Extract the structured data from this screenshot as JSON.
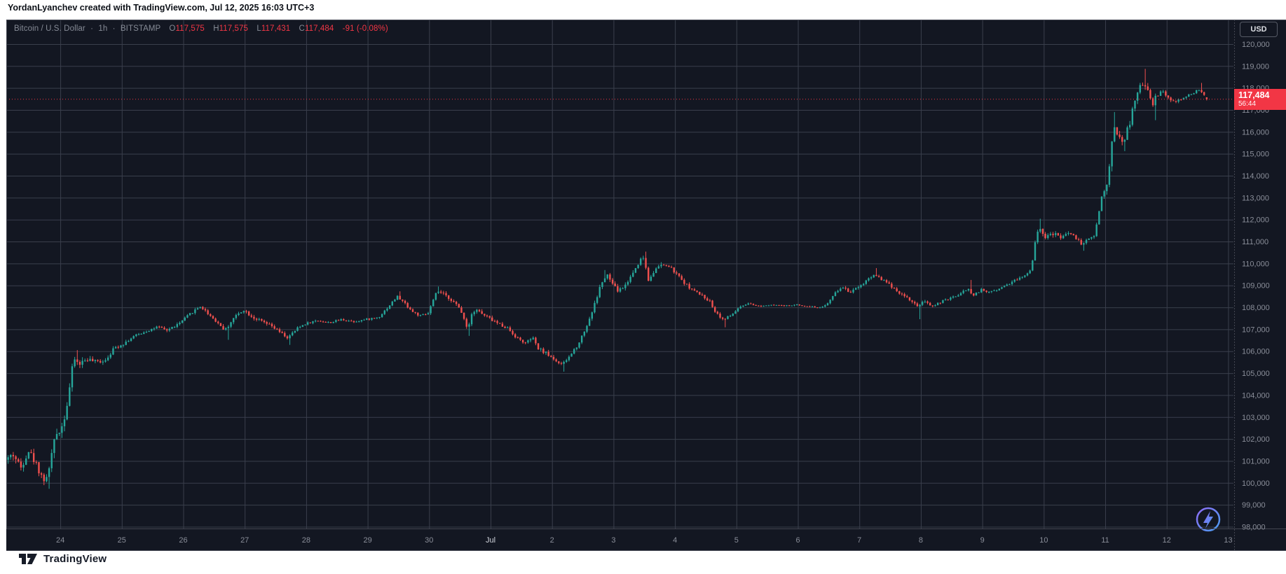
{
  "attribution": "YordanLyanchev created with TradingView.com, Jul 12, 2025 16:03 UTC+3",
  "footer": {
    "brand": "TradingView"
  },
  "symbol_bar": {
    "title": "Bitcoin / U.S. Dollar",
    "separator": "·",
    "interval": "1h",
    "exchange": "BITSTAMP",
    "o_label": "O",
    "o_value": "117,575",
    "h_label": "H",
    "h_value": "117,575",
    "l_label": "L",
    "l_value": "117,431",
    "c_label": "C",
    "c_value": "117,484",
    "change": "-91 (-0.08%)"
  },
  "price_axis": {
    "currency_button": "USD",
    "last_price_label": "117,484",
    "countdown": "56:44",
    "labels": [
      {
        "text": "120,000",
        "value": 120000
      },
      {
        "text": "119,000",
        "value": 119000
      },
      {
        "text": "118,000",
        "value": 118000
      },
      {
        "text": "117,000",
        "value": 117000
      },
      {
        "text": "116,000",
        "value": 116000
      },
      {
        "text": "115,000",
        "value": 115000
      },
      {
        "text": "114,000",
        "value": 114000
      },
      {
        "text": "113,000",
        "value": 113000
      },
      {
        "text": "112,000",
        "value": 112000
      },
      {
        "text": "111,000",
        "value": 111000
      },
      {
        "text": "110,000",
        "value": 110000
      },
      {
        "text": "109,000",
        "value": 109000
      },
      {
        "text": "108,000",
        "value": 108000
      },
      {
        "text": "107,000",
        "value": 107000
      },
      {
        "text": "106,000",
        "value": 106000
      },
      {
        "text": "105,000",
        "value": 105000
      },
      {
        "text": "104,000",
        "value": 104000
      },
      {
        "text": "103,000",
        "value": 103000
      },
      {
        "text": "102,000",
        "value": 102000
      },
      {
        "text": "101,000",
        "value": 101000
      },
      {
        "text": "100,000",
        "value": 100000
      },
      {
        "text": "99,000",
        "value": 99000
      },
      {
        "text": "98,000",
        "value": 98000
      }
    ]
  },
  "time_axis": {
    "labels": [
      {
        "text": "24",
        "day": -7
      },
      {
        "text": "25",
        "day": -6
      },
      {
        "text": "26",
        "day": -5
      },
      {
        "text": "27",
        "day": -4
      },
      {
        "text": "28",
        "day": -3
      },
      {
        "text": "29",
        "day": -2
      },
      {
        "text": "30",
        "day": -1
      },
      {
        "text": "Jul",
        "day": 0,
        "major": true
      },
      {
        "text": "2",
        "day": 1
      },
      {
        "text": "3",
        "day": 2
      },
      {
        "text": "4",
        "day": 3
      },
      {
        "text": "5",
        "day": 4
      },
      {
        "text": "6",
        "day": 5
      },
      {
        "text": "7",
        "day": 6
      },
      {
        "text": "8",
        "day": 7
      },
      {
        "text": "9",
        "day": 8
      },
      {
        "text": "10",
        "day": 9
      },
      {
        "text": "11",
        "day": 10
      },
      {
        "text": "12",
        "day": 11
      },
      {
        "text": "13",
        "day": 12
      }
    ]
  },
  "colors": {
    "background": "#131722",
    "grid": "#3a3f4c",
    "border": "#434651",
    "axis_text": "#8a8e99",
    "axis_text_major": "#d1d4dc",
    "up": "#26a69a",
    "down": "#f0504e",
    "price_line": "#f23645",
    "badge_bg": "#f23645",
    "watermark_purple": "#8d6bf5",
    "watermark_blue": "#4a9df0"
  },
  "chart_data": {
    "type": "candlestick",
    "symbol": "BTCUSD",
    "title": "Bitcoin / U.S. Dollar",
    "exchange": "BITSTAMP",
    "interval": "1h",
    "x_axis": "date (Jun 23 - Jul 13, 2025; day 0 = Jul 1)",
    "y_axis": "price (USD)",
    "x_domain": [
      -7.879,
      12.086
    ],
    "y_domain": [
      97920,
      121115
    ],
    "grid_step_price": 1000,
    "grid_step_days": 1,
    "start_day": -7.87,
    "candle_count": 469,
    "hours_per_candle": 1,
    "last_candle": {
      "open": 117575,
      "high": 117575,
      "low": 117431,
      "close": 117484,
      "change": -91,
      "change_pct": -0.08
    },
    "last_price": 117484,
    "price_path": [
      [
        -7.87,
        101050
      ],
      [
        -7.75,
        101300
      ],
      [
        -7.62,
        100700
      ],
      [
        -7.5,
        101500
      ],
      [
        -7.38,
        100900
      ],
      [
        -7.28,
        100300
      ],
      [
        -7.21,
        100050
      ],
      [
        -7.14,
        101050
      ],
      [
        -7.05,
        102200
      ],
      [
        -6.95,
        102600
      ],
      [
        -6.88,
        103400
      ],
      [
        -6.82,
        104500
      ],
      [
        -6.76,
        105700
      ],
      [
        -6.68,
        105400
      ],
      [
        -6.55,
        105650
      ],
      [
        -6.4,
        105500
      ],
      [
        -6.25,
        105600
      ],
      [
        -6.1,
        106150
      ],
      [
        -5.95,
        106350
      ],
      [
        -5.8,
        106650
      ],
      [
        -5.6,
        106900
      ],
      [
        -5.4,
        107100
      ],
      [
        -5.25,
        106950
      ],
      [
        -5.05,
        107250
      ],
      [
        -4.85,
        107750
      ],
      [
        -4.7,
        108050
      ],
      [
        -4.55,
        107650
      ],
      [
        -4.42,
        107300
      ],
      [
        -4.3,
        106950
      ],
      [
        -4.15,
        107550
      ],
      [
        -4.0,
        107900
      ],
      [
        -3.85,
        107550
      ],
      [
        -3.7,
        107350
      ],
      [
        -3.55,
        107150
      ],
      [
        -3.4,
        106850
      ],
      [
        -3.28,
        106600
      ],
      [
        -3.12,
        107050
      ],
      [
        -3.0,
        107250
      ],
      [
        -2.8,
        107400
      ],
      [
        -2.6,
        107300
      ],
      [
        -2.4,
        107450
      ],
      [
        -2.2,
        107350
      ],
      [
        -2.0,
        107450
      ],
      [
        -1.8,
        107550
      ],
      [
        -1.62,
        108100
      ],
      [
        -1.5,
        108500
      ],
      [
        -1.38,
        108200
      ],
      [
        -1.25,
        107800
      ],
      [
        -1.12,
        107600
      ],
      [
        -1.0,
        107700
      ],
      [
        -0.92,
        108250
      ],
      [
        -0.85,
        108750
      ],
      [
        -0.75,
        108600
      ],
      [
        -0.62,
        108350
      ],
      [
        -0.5,
        108000
      ],
      [
        -0.42,
        107600
      ],
      [
        -0.35,
        106950
      ],
      [
        -0.29,
        107750
      ],
      [
        -0.2,
        107900
      ],
      [
        -0.1,
        107650
      ],
      [
        0.0,
        107500
      ],
      [
        0.15,
        107250
      ],
      [
        0.3,
        107050
      ],
      [
        0.45,
        106600
      ],
      [
        0.6,
        106350
      ],
      [
        0.7,
        106650
      ],
      [
        0.78,
        106150
      ],
      [
        0.9,
        105950
      ],
      [
        1.05,
        105650
      ],
      [
        1.18,
        105350
      ],
      [
        1.3,
        105750
      ],
      [
        1.45,
        106350
      ],
      [
        1.6,
        107250
      ],
      [
        1.72,
        108200
      ],
      [
        1.82,
        109100
      ],
      [
        1.92,
        109450
      ],
      [
        2.0,
        109100
      ],
      [
        2.08,
        108750
      ],
      [
        2.2,
        108950
      ],
      [
        2.32,
        109500
      ],
      [
        2.45,
        110150
      ],
      [
        2.52,
        110300
      ],
      [
        2.58,
        109200
      ],
      [
        2.65,
        109550
      ],
      [
        2.75,
        109850
      ],
      [
        2.85,
        109950
      ],
      [
        2.95,
        109800
      ],
      [
        3.05,
        109500
      ],
      [
        3.18,
        109100
      ],
      [
        3.3,
        108800
      ],
      [
        3.45,
        108550
      ],
      [
        3.58,
        108300
      ],
      [
        3.68,
        107800
      ],
      [
        3.8,
        107450
      ],
      [
        3.92,
        107600
      ],
      [
        4.05,
        107950
      ],
      [
        4.2,
        108150
      ],
      [
        4.4,
        108050
      ],
      [
        4.6,
        108130
      ],
      [
        4.8,
        108060
      ],
      [
        5.0,
        108110
      ],
      [
        5.2,
        108050
      ],
      [
        5.38,
        107980
      ],
      [
        5.52,
        108200
      ],
      [
        5.65,
        108750
      ],
      [
        5.78,
        108950
      ],
      [
        5.85,
        108650
      ],
      [
        5.95,
        108900
      ],
      [
        6.05,
        109000
      ],
      [
        6.18,
        109350
      ],
      [
        6.28,
        109500
      ],
      [
        6.4,
        109250
      ],
      [
        6.55,
        108950
      ],
      [
        6.7,
        108600
      ],
      [
        6.82,
        108400
      ],
      [
        6.95,
        108050
      ],
      [
        7.08,
        108250
      ],
      [
        7.2,
        108050
      ],
      [
        7.35,
        108250
      ],
      [
        7.5,
        108400
      ],
      [
        7.65,
        108600
      ],
      [
        7.78,
        108850
      ],
      [
        7.88,
        108550
      ],
      [
        8.0,
        108800
      ],
      [
        8.12,
        108700
      ],
      [
        8.25,
        108800
      ],
      [
        8.4,
        109000
      ],
      [
        8.55,
        109250
      ],
      [
        8.7,
        109400
      ],
      [
        8.82,
        109800
      ],
      [
        8.9,
        111400
      ],
      [
        8.97,
        111600
      ],
      [
        9.05,
        111200
      ],
      [
        9.18,
        111350
      ],
      [
        9.3,
        111200
      ],
      [
        9.42,
        111400
      ],
      [
        9.55,
        111150
      ],
      [
        9.65,
        110850
      ],
      [
        9.75,
        111150
      ],
      [
        9.85,
        111250
      ],
      [
        9.93,
        112600
      ],
      [
        10.0,
        113400
      ],
      [
        10.07,
        113700
      ],
      [
        10.13,
        115600
      ],
      [
        10.18,
        116300
      ],
      [
        10.25,
        115700
      ],
      [
        10.32,
        115600
      ],
      [
        10.42,
        116400
      ],
      [
        10.5,
        117400
      ],
      [
        10.58,
        118000
      ],
      [
        10.65,
        118250
      ],
      [
        10.72,
        117900
      ],
      [
        10.78,
        117100
      ],
      [
        10.85,
        117650
      ],
      [
        10.95,
        117850
      ],
      [
        11.05,
        117500
      ],
      [
        11.15,
        117350
      ],
      [
        11.3,
        117550
      ],
      [
        11.45,
        117750
      ],
      [
        11.55,
        117950
      ],
      [
        11.62,
        117700
      ],
      [
        11.66,
        117484
      ]
    ],
    "volatility_path": [
      [
        -7.87,
        420
      ],
      [
        -7.0,
        520
      ],
      [
        -6.6,
        300
      ],
      [
        -6.0,
        180
      ],
      [
        -5.0,
        150
      ],
      [
        -4.4,
        190
      ],
      [
        -3.6,
        180
      ],
      [
        -2.8,
        110
      ],
      [
        -2.0,
        110
      ],
      [
        -1.5,
        150
      ],
      [
        -0.9,
        170
      ],
      [
        -0.3,
        200
      ],
      [
        0.3,
        170
      ],
      [
        0.9,
        190
      ],
      [
        1.5,
        210
      ],
      [
        2.2,
        240
      ],
      [
        2.8,
        170
      ],
      [
        3.5,
        160
      ],
      [
        3.9,
        160
      ],
      [
        4.3,
        70
      ],
      [
        5.3,
        70
      ],
      [
        5.7,
        150
      ],
      [
        6.3,
        170
      ],
      [
        7.0,
        150
      ],
      [
        7.6,
        130
      ],
      [
        8.3,
        130
      ],
      [
        8.8,
        180
      ],
      [
        9.0,
        300
      ],
      [
        9.4,
        160
      ],
      [
        9.8,
        160
      ],
      [
        9.95,
        420
      ],
      [
        10.15,
        480
      ],
      [
        10.45,
        330
      ],
      [
        10.7,
        330
      ],
      [
        10.85,
        220
      ],
      [
        11.2,
        140
      ],
      [
        11.66,
        110
      ]
    ],
    "wick_extremes": [
      [
        -7.22,
        "l",
        99730
      ],
      [
        -6.76,
        "h",
        106050
      ],
      [
        -4.3,
        "l",
        106520
      ],
      [
        -3.3,
        "l",
        106290
      ],
      [
        -1.5,
        "h",
        108730
      ],
      [
        -0.85,
        "h",
        108950
      ],
      [
        -0.35,
        "l",
        106700
      ],
      [
        1.18,
        "l",
        105070
      ],
      [
        1.85,
        "h",
        109700
      ],
      [
        2.5,
        "h",
        110540
      ],
      [
        2.75,
        "h",
        110060
      ],
      [
        3.8,
        "l",
        107090
      ],
      [
        6.27,
        "h",
        109790
      ],
      [
        6.97,
        "l",
        107460
      ],
      [
        7.78,
        "h",
        109250
      ],
      [
        8.92,
        "h",
        112040
      ],
      [
        9.65,
        "l",
        110580
      ],
      [
        10.14,
        "h",
        116900
      ],
      [
        10.28,
        "l",
        115120
      ],
      [
        10.63,
        "h",
        118870
      ],
      [
        10.79,
        "l",
        116530
      ],
      [
        11.55,
        "h",
        118230
      ]
    ]
  }
}
